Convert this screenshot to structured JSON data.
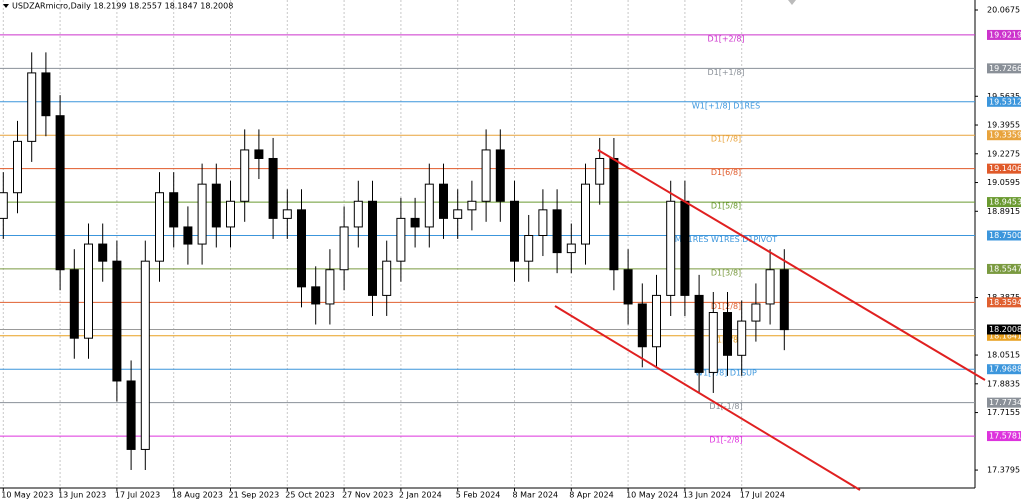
{
  "chart_data": {
    "type": "candlestick",
    "title": "USDZARmicro,Daily  18.2199 18.2557 18.1847 18.2008",
    "categories": [
      "10 May 2023",
      null,
      null,
      null,
      "13 Jun 2023",
      null,
      null,
      null,
      "17 Jul 2023",
      null,
      null,
      null,
      "18 Aug 2023",
      null,
      null,
      null,
      "21 Sep 2023",
      null,
      null,
      null,
      "25 Oct 2023",
      null,
      null,
      null,
      "27 Nov 2023",
      null,
      null,
      null,
      "2 Jan 2024",
      null,
      null,
      null,
      "5 Feb 2024",
      null,
      null,
      null,
      "8 Mar 2024",
      null,
      null,
      null,
      "8 Apr 2024",
      null,
      null,
      null,
      "10 May 2024",
      null,
      null,
      null,
      "13 Jun 2024",
      null,
      null,
      null,
      "17 Jul 2024",
      null,
      null,
      null
    ],
    "open": [
      18.85,
      19.0,
      19.3,
      19.7,
      19.45,
      18.55,
      18.15,
      18.7,
      18.6,
      17.9,
      17.5,
      18.6,
      19.0,
      18.8,
      18.7,
      19.05,
      18.8,
      18.95,
      19.25,
      19.2,
      18.85,
      18.9,
      18.45,
      18.35,
      18.55,
      18.8,
      18.95,
      18.4,
      18.6,
      18.85,
      18.8,
      19.05,
      18.85,
      18.9,
      18.95,
      19.25,
      18.95,
      18.6,
      18.75,
      18.9,
      18.65,
      18.7,
      19.05,
      19.2,
      18.55,
      18.35,
      18.1,
      18.4,
      18.95,
      18.4,
      17.95,
      18.3,
      18.05,
      18.25,
      18.35,
      18.55
    ],
    "high": [
      19.12,
      19.42,
      19.82,
      19.82,
      19.57,
      18.67,
      18.82,
      18.82,
      18.72,
      18.02,
      18.72,
      19.12,
      19.12,
      18.92,
      19.17,
      19.17,
      19.07,
      19.37,
      19.37,
      19.32,
      19.02,
      19.02,
      18.57,
      18.67,
      18.92,
      19.07,
      19.07,
      18.72,
      18.97,
      18.97,
      19.17,
      19.17,
      19.02,
      19.07,
      19.37,
      19.37,
      19.07,
      18.87,
      19.02,
      19.02,
      18.82,
      19.17,
      19.32,
      19.32,
      18.67,
      18.47,
      18.52,
      19.07,
      19.07,
      18.52,
      18.42,
      18.42,
      18.37,
      18.47,
      18.67,
      18.67
    ],
    "low": [
      18.73,
      18.88,
      19.18,
      19.33,
      18.43,
      18.03,
      18.03,
      18.48,
      17.78,
      17.38,
      17.38,
      18.48,
      18.68,
      18.58,
      18.58,
      18.68,
      18.68,
      18.83,
      19.08,
      18.73,
      18.73,
      18.33,
      18.23,
      18.23,
      18.43,
      18.68,
      18.28,
      18.28,
      18.48,
      18.68,
      18.68,
      18.73,
      18.73,
      18.78,
      18.83,
      18.83,
      18.48,
      18.48,
      18.63,
      18.53,
      18.53,
      18.58,
      18.93,
      18.43,
      18.23,
      17.98,
      17.98,
      18.28,
      18.28,
      17.83,
      17.83,
      17.93,
      17.93,
      18.13,
      18.23,
      18.08
    ],
    "close": [
      19.0,
      19.3,
      19.7,
      19.45,
      18.55,
      18.15,
      18.7,
      18.6,
      17.9,
      17.5,
      18.6,
      19.0,
      18.8,
      18.7,
      19.05,
      18.8,
      18.95,
      19.25,
      19.2,
      18.85,
      18.9,
      18.45,
      18.35,
      18.55,
      18.8,
      18.95,
      18.4,
      18.6,
      18.85,
      18.8,
      19.05,
      18.85,
      18.9,
      18.95,
      19.25,
      18.95,
      18.6,
      18.75,
      18.9,
      18.65,
      18.7,
      19.05,
      19.2,
      18.55,
      18.35,
      18.1,
      18.4,
      18.95,
      18.4,
      17.95,
      18.3,
      18.05,
      18.25,
      18.35,
      18.55,
      18.2
    ],
    "ylim": [
      17.263,
      20.126
    ],
    "yticks": [
      20.0675,
      19.5635,
      19.3955,
      19.2275,
      19.0595,
      18.8915,
      18.3875,
      18.0515,
      17.8835,
      17.7155,
      17.3795
    ],
    "levels": [
      {
        "name": "D1[+2/8]",
        "value": 19.9219,
        "color": "#cc33cc"
      },
      {
        "name": "D1[+1/8]",
        "value": 19.7266,
        "color": "#8a9098"
      },
      {
        "name": "W1[+1/8] D1RES",
        "value": 19.5312,
        "color": "#3c96dc"
      },
      {
        "name": "D1[7/8]",
        "value": 19.3359,
        "color": "#e8a33c"
      },
      {
        "name": "D1[6/8]",
        "value": 19.1406,
        "color": "#e05a2a"
      },
      {
        "name": "D1[5/8]",
        "value": 18.9453,
        "color": "#6a9a30"
      },
      {
        "name": "MN1RES W1RES D1PIVOT",
        "value": 18.75,
        "value_label": "18.7500",
        "color": "#3c96dc"
      },
      {
        "name": "D1[3/8]",
        "value": 18.5547,
        "color": "#7a9a40"
      },
      {
        "name": "D1[2/8]",
        "value": 18.3594,
        "color": "#e06030"
      },
      {
        "name": "D1[1/8]",
        "value": 18.1641,
        "color": "#e8a020"
      },
      {
        "name": "W1[7/8] D1SUP",
        "value": 17.9688,
        "color": "#3c96dc"
      },
      {
        "name": "D1[-1/8]",
        "value": 17.7734,
        "color": "#8a9098"
      },
      {
        "name": "D1[-2/8]",
        "value": 17.5781,
        "color": "#dd33dd"
      }
    ],
    "price": 18.2008
  }
}
